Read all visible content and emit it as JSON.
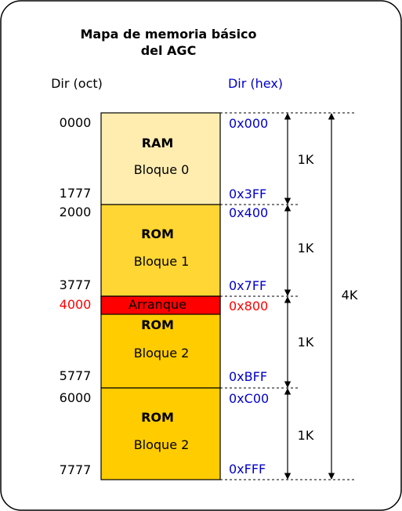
{
  "title": {
    "line1": "Mapa de memoria básico",
    "line2": "del AGC"
  },
  "headers": {
    "oct": "Dir (oct)",
    "hex": "Dir (hex)"
  },
  "blocks": [
    {
      "type": "RAM",
      "name": "Bloque 0",
      "color": "#FFEDB0"
    },
    {
      "type": "ROM",
      "name": "Bloque 1",
      "color": "#FFD633"
    },
    {
      "type": "ROM",
      "name": "Bloque 2",
      "color": "#FFCC00",
      "banner": "Arranque",
      "banner_color": "#FF0000"
    },
    {
      "type": "ROM",
      "name": "Bloque 2",
      "color": "#FFCC00"
    }
  ],
  "oct_addresses": [
    "0000",
    "1777",
    "2000",
    "3777",
    "4000",
    "5777",
    "6000",
    "7777"
  ],
  "hex_addresses": [
    "0x000",
    "0x3FF",
    "0x400",
    "0x7FF",
    "0x800",
    "0xBFF",
    "0xC00",
    "0xFFF"
  ],
  "sizes": {
    "segment": "1K",
    "total": "4K"
  },
  "colors": {
    "hex_text": "#0000CC",
    "highlight_text": "#FF0000",
    "default_text": "#000000"
  }
}
